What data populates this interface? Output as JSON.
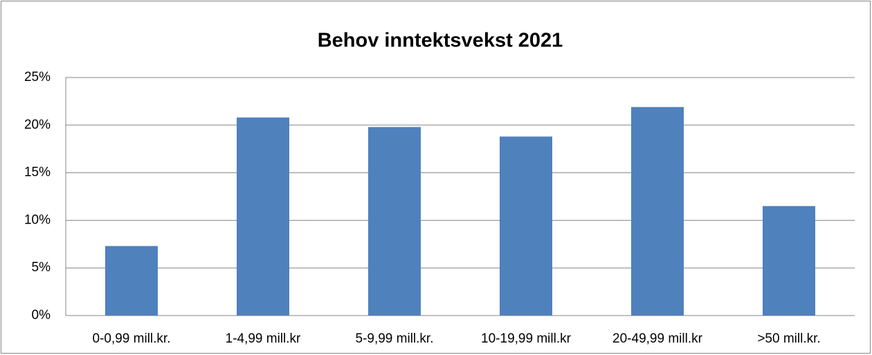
{
  "chart_data": {
    "type": "bar",
    "title": "Behov inntektsvekst 2021",
    "categories": [
      "0-0,99 mill.kr.",
      "1-4,99 mill.kr",
      "5-9,99 mill.kr.",
      "10-19,99 mill.kr",
      "20-49,99 mill.kr",
      ">50 mill.kr."
    ],
    "values": [
      7.3,
      20.8,
      19.8,
      18.8,
      21.9,
      11.5
    ],
    "color": "#4f81bd",
    "ylim": [
      0,
      25
    ],
    "yticks": [
      {
        "value": 0,
        "label": "0%"
      },
      {
        "value": 5,
        "label": "5%"
      },
      {
        "value": 10,
        "label": "10%"
      },
      {
        "value": 15,
        "label": "15%"
      },
      {
        "value": 20,
        "label": "20%"
      },
      {
        "value": 25,
        "label": "25%"
      }
    ],
    "grid": true
  }
}
